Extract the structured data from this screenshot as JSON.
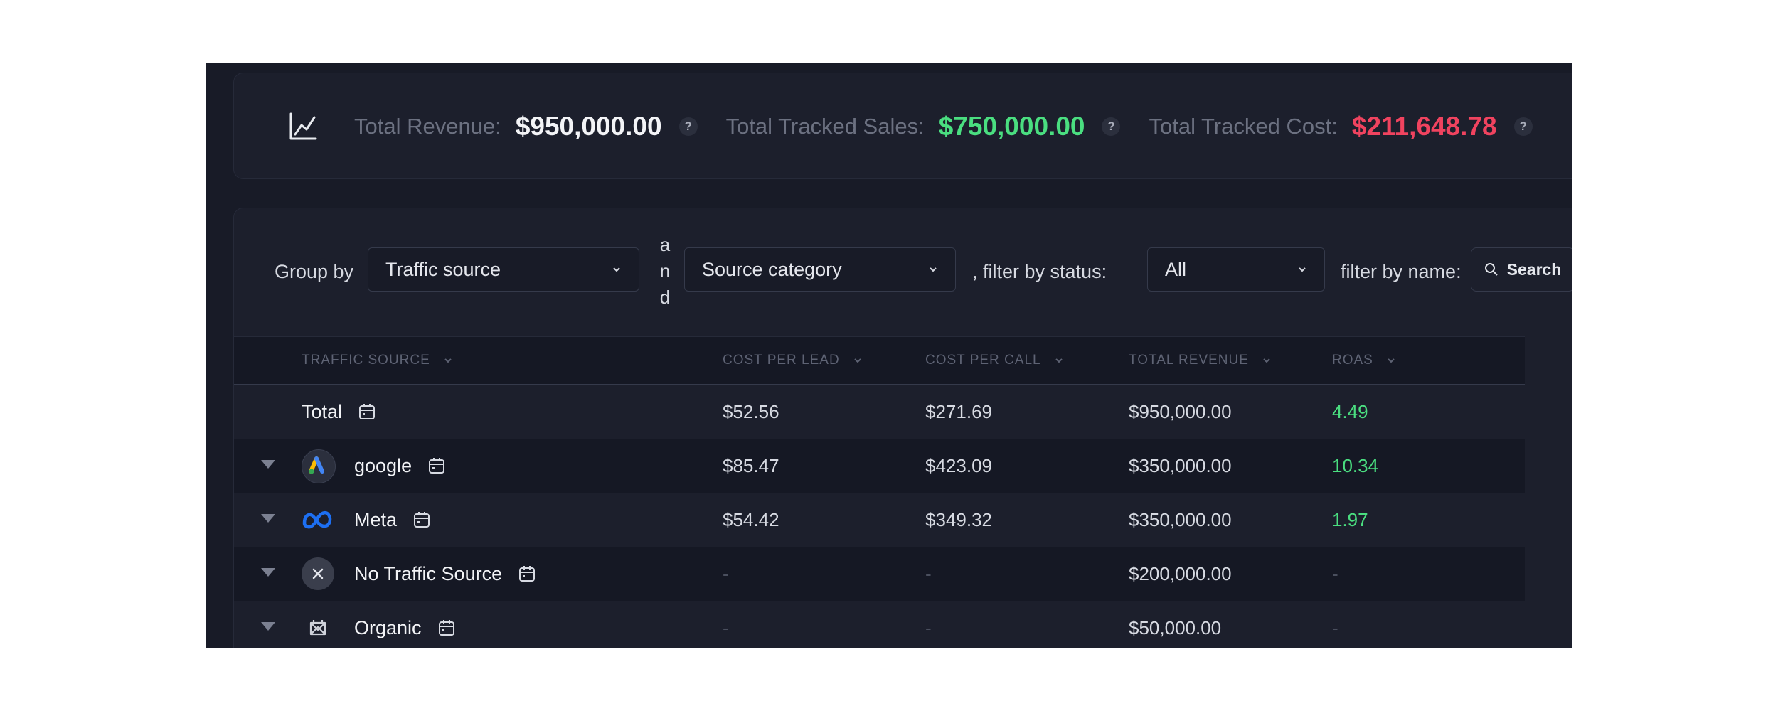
{
  "stats": {
    "total_revenue_label": "Total Revenue:",
    "total_revenue_value": "$950,000.00",
    "tracked_sales_label": "Total Tracked Sales:",
    "tracked_sales_value": "$750,000.00",
    "tracked_cost_label": "Total Tracked Cost:",
    "tracked_cost_value": "$211,648.78",
    "help": "?"
  },
  "filters": {
    "group_by_label": "Group by",
    "group_by_value": "Traffic source",
    "and_label": "a n d",
    "second_group_value": "Source category",
    "status_label": ", filter by status:",
    "status_value": "All",
    "name_label": "filter by name:",
    "search_label": "Search"
  },
  "table": {
    "columns": [
      "TRAFFIC SOURCE",
      "COST PER LEAD",
      "COST PER CALL",
      "TOTAL REVENUE",
      "ROAS"
    ],
    "total_row": {
      "name": "Total",
      "cpl": "$52.56",
      "cpc": "$271.69",
      "revenue": "$950,000.00",
      "roas": "4.49"
    },
    "rows": [
      {
        "name": "google",
        "icon": "google-ads-icon",
        "cpl": "$85.47",
        "cpc": "$423.09",
        "revenue": "$350,000.00",
        "roas": "10.34"
      },
      {
        "name": "Meta",
        "icon": "meta-icon",
        "cpl": "$54.42",
        "cpc": "$349.32",
        "revenue": "$350,000.00",
        "roas": "1.97"
      },
      {
        "name": "No Traffic Source",
        "icon": "close-icon",
        "cpl": "-",
        "cpc": "-",
        "revenue": "$200,000.00",
        "roas": "-"
      },
      {
        "name": "Organic",
        "icon": "organic-icon",
        "cpl": "-",
        "cpc": "-",
        "revenue": "$50,000.00",
        "roas": "-"
      }
    ]
  },
  "colors": {
    "background": "#181b27",
    "positive": "#4ade80",
    "negative": "#f0435f"
  }
}
